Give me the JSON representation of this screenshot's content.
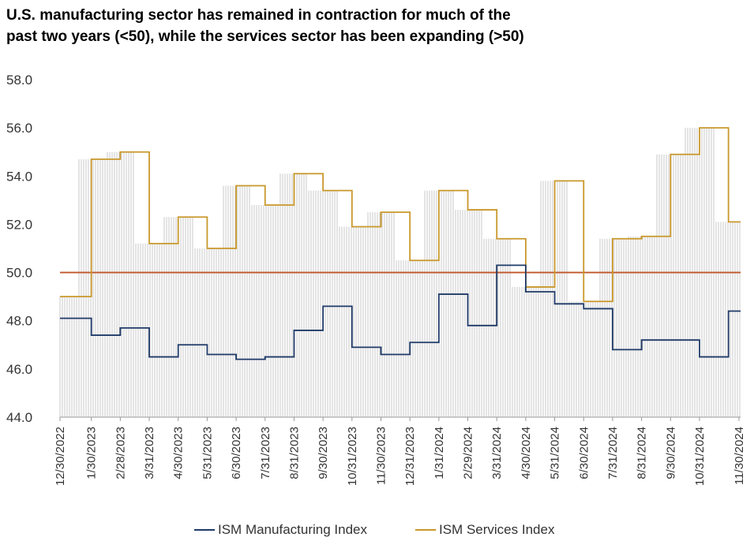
{
  "title_line1": "U.S. manufacturing sector has remained in contraction for much of the",
  "title_line2": "past two years (<50),  while the services sector has been expanding (>50)",
  "colors": {
    "manufacturing": "#1f3a68",
    "services": "#c9982b",
    "threshold": "#c0562a",
    "hatch": "#c8c8c8"
  },
  "chart_data": {
    "type": "line",
    "ylim": [
      44,
      58
    ],
    "yticks": [
      "44.0",
      "46.0",
      "48.0",
      "50.0",
      "52.0",
      "54.0",
      "56.0",
      "58.0"
    ],
    "categories": [
      "12/30/2022",
      "1/30/2023",
      "2/28/2023",
      "3/31/2023",
      "4/30/2023",
      "5/31/2023",
      "6/30/2023",
      "7/31/2023",
      "8/31/2023",
      "9/30/2023",
      "10/31/2023",
      "11/30/2023",
      "12/31/2023",
      "1/31/2024",
      "2/29/2024",
      "3/31/2024",
      "4/30/2024",
      "5/31/2024",
      "6/30/2024",
      "7/31/2024",
      "8/31/2024",
      "9/30/2024",
      "10/31/2024",
      "11/30/2024"
    ],
    "threshold": 50,
    "series": [
      {
        "name": "ISM Manufacturing Index",
        "values": [
          48.1,
          47.4,
          47.7,
          46.5,
          47.0,
          46.6,
          46.4,
          46.5,
          47.6,
          48.6,
          46.9,
          46.6,
          47.1,
          49.1,
          47.8,
          50.3,
          49.2,
          48.7,
          48.5,
          46.8,
          47.2,
          47.2,
          46.5,
          48.4
        ]
      },
      {
        "name": "ISM Services Index",
        "values": [
          49.0,
          54.7,
          55.0,
          51.2,
          52.3,
          51.0,
          53.6,
          52.8,
          54.1,
          53.4,
          51.9,
          52.5,
          50.5,
          53.4,
          52.6,
          51.4,
          49.4,
          53.8,
          48.8,
          51.4,
          51.5,
          54.9,
          56.0,
          52.1
        ]
      }
    ]
  }
}
